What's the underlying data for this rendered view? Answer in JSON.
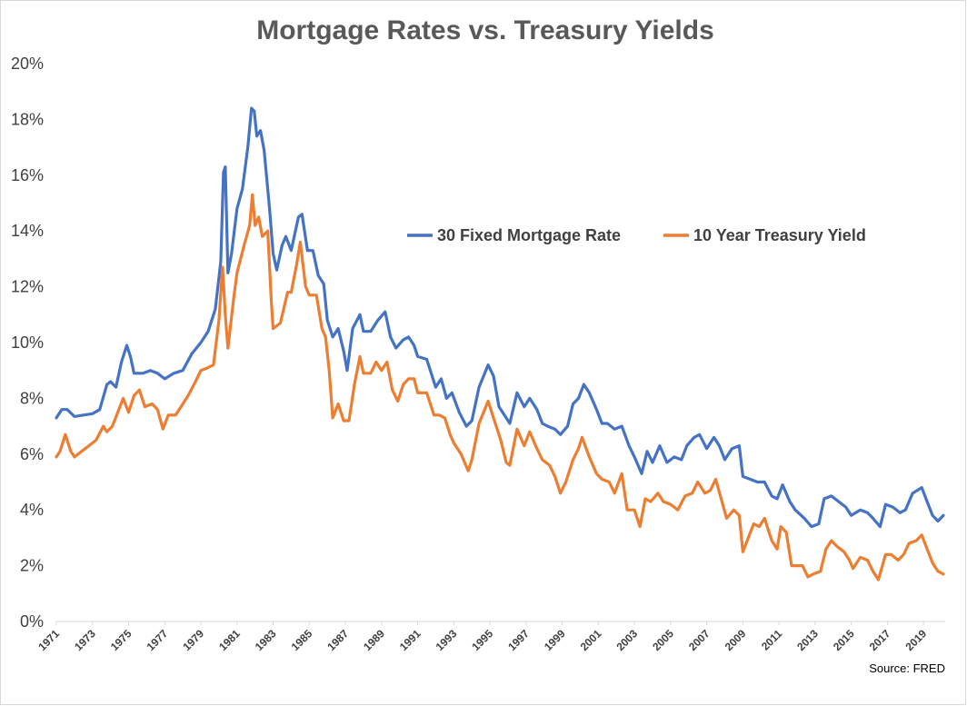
{
  "chart_data": {
    "type": "line",
    "title": "Mortgage Rates vs. Treasury Yields",
    "source": "Source: FRED",
    "xlabel": "",
    "ylabel": "",
    "xlim": [
      1971,
      2020.2
    ],
    "ylim": [
      0,
      20
    ],
    "y_ticks": [
      "0%",
      "2%",
      "4%",
      "6%",
      "8%",
      "10%",
      "12%",
      "14%",
      "16%",
      "18%",
      "20%"
    ],
    "x_ticks": [
      "1971",
      "1973",
      "1975",
      "1977",
      "1979",
      "1981",
      "1983",
      "1985",
      "1987",
      "1989",
      "1991",
      "1993",
      "1995",
      "1997",
      "1999",
      "2001",
      "2003",
      "2005",
      "2007",
      "2009",
      "2011",
      "2013",
      "2015",
      "2017",
      "2019"
    ],
    "grid": false,
    "legend_position": "upper-right",
    "series": [
      {
        "name": "30 Fixed Mortgage Rate",
        "color": "#4472C4",
        "points": [
          [
            1971.0,
            7.3
          ],
          [
            1971.3,
            7.6
          ],
          [
            1971.6,
            7.6
          ],
          [
            1972.0,
            7.35
          ],
          [
            1972.5,
            7.4
          ],
          [
            1973.0,
            7.45
          ],
          [
            1973.4,
            7.6
          ],
          [
            1973.8,
            8.5
          ],
          [
            1974.0,
            8.6
          ],
          [
            1974.3,
            8.4
          ],
          [
            1974.6,
            9.3
          ],
          [
            1974.9,
            9.9
          ],
          [
            1975.1,
            9.5
          ],
          [
            1975.3,
            8.9
          ],
          [
            1975.8,
            8.9
          ],
          [
            1976.2,
            9.0
          ],
          [
            1976.6,
            8.9
          ],
          [
            1977.0,
            8.7
          ],
          [
            1977.5,
            8.9
          ],
          [
            1978.0,
            9.0
          ],
          [
            1978.5,
            9.6
          ],
          [
            1979.0,
            10.0
          ],
          [
            1979.4,
            10.4
          ],
          [
            1979.8,
            11.2
          ],
          [
            1980.1,
            12.9
          ],
          [
            1980.25,
            16.1
          ],
          [
            1980.35,
            16.3
          ],
          [
            1980.5,
            12.5
          ],
          [
            1980.7,
            13.2
          ],
          [
            1981.0,
            14.8
          ],
          [
            1981.3,
            15.5
          ],
          [
            1981.6,
            17.0
          ],
          [
            1981.8,
            18.4
          ],
          [
            1981.95,
            18.3
          ],
          [
            1982.1,
            17.4
          ],
          [
            1982.3,
            17.6
          ],
          [
            1982.5,
            16.9
          ],
          [
            1982.8,
            14.8
          ],
          [
            1983.0,
            13.2
          ],
          [
            1983.2,
            12.6
          ],
          [
            1983.5,
            13.5
          ],
          [
            1983.7,
            13.8
          ],
          [
            1984.0,
            13.3
          ],
          [
            1984.4,
            14.5
          ],
          [
            1984.6,
            14.6
          ],
          [
            1984.9,
            13.3
          ],
          [
            1985.2,
            13.3
          ],
          [
            1985.5,
            12.4
          ],
          [
            1985.8,
            12.1
          ],
          [
            1986.0,
            10.8
          ],
          [
            1986.3,
            10.2
          ],
          [
            1986.6,
            10.5
          ],
          [
            1986.9,
            9.7
          ],
          [
            1987.1,
            9.0
          ],
          [
            1987.4,
            10.5
          ],
          [
            1987.8,
            11.0
          ],
          [
            1988.0,
            10.4
          ],
          [
            1988.4,
            10.4
          ],
          [
            1988.8,
            10.8
          ],
          [
            1989.2,
            11.1
          ],
          [
            1989.5,
            10.2
          ],
          [
            1989.8,
            9.8
          ],
          [
            1990.2,
            10.1
          ],
          [
            1990.5,
            10.2
          ],
          [
            1990.8,
            9.9
          ],
          [
            1991.0,
            9.5
          ],
          [
            1991.5,
            9.4
          ],
          [
            1992.0,
            8.4
          ],
          [
            1992.3,
            8.7
          ],
          [
            1992.6,
            8.0
          ],
          [
            1992.9,
            8.2
          ],
          [
            1993.3,
            7.5
          ],
          [
            1993.7,
            7.0
          ],
          [
            1994.0,
            7.2
          ],
          [
            1994.4,
            8.4
          ],
          [
            1994.9,
            9.2
          ],
          [
            1995.2,
            8.8
          ],
          [
            1995.5,
            7.7
          ],
          [
            1995.9,
            7.3
          ],
          [
            1996.1,
            7.1
          ],
          [
            1996.5,
            8.2
          ],
          [
            1996.9,
            7.7
          ],
          [
            1997.2,
            8.0
          ],
          [
            1997.6,
            7.6
          ],
          [
            1997.9,
            7.1
          ],
          [
            1998.2,
            7.0
          ],
          [
            1998.6,
            6.9
          ],
          [
            1998.9,
            6.7
          ],
          [
            1999.3,
            7.0
          ],
          [
            1999.6,
            7.8
          ],
          [
            1999.9,
            8.0
          ],
          [
            2000.2,
            8.5
          ],
          [
            2000.5,
            8.2
          ],
          [
            2000.9,
            7.6
          ],
          [
            2001.2,
            7.1
          ],
          [
            2001.5,
            7.1
          ],
          [
            2001.9,
            6.9
          ],
          [
            2002.3,
            7.0
          ],
          [
            2002.7,
            6.3
          ],
          [
            2003.0,
            5.9
          ],
          [
            2003.4,
            5.3
          ],
          [
            2003.7,
            6.1
          ],
          [
            2004.0,
            5.7
          ],
          [
            2004.4,
            6.3
          ],
          [
            2004.8,
            5.7
          ],
          [
            2005.2,
            5.9
          ],
          [
            2005.6,
            5.8
          ],
          [
            2005.9,
            6.3
          ],
          [
            2006.3,
            6.6
          ],
          [
            2006.6,
            6.7
          ],
          [
            2007.0,
            6.2
          ],
          [
            2007.4,
            6.6
          ],
          [
            2007.7,
            6.3
          ],
          [
            2008.0,
            5.8
          ],
          [
            2008.4,
            6.2
          ],
          [
            2008.8,
            6.3
          ],
          [
            2009.0,
            5.2
          ],
          [
            2009.4,
            5.1
          ],
          [
            2009.8,
            5.0
          ],
          [
            2010.2,
            5.0
          ],
          [
            2010.6,
            4.5
          ],
          [
            2010.9,
            4.4
          ],
          [
            2011.2,
            4.9
          ],
          [
            2011.6,
            4.3
          ],
          [
            2011.9,
            4.0
          ],
          [
            2012.4,
            3.7
          ],
          [
            2012.8,
            3.4
          ],
          [
            2013.2,
            3.5
          ],
          [
            2013.5,
            4.4
          ],
          [
            2013.9,
            4.5
          ],
          [
            2014.3,
            4.3
          ],
          [
            2014.7,
            4.1
          ],
          [
            2015.0,
            3.8
          ],
          [
            2015.5,
            4.0
          ],
          [
            2015.9,
            3.9
          ],
          [
            2016.2,
            3.7
          ],
          [
            2016.6,
            3.4
          ],
          [
            2016.9,
            4.2
          ],
          [
            2017.3,
            4.1
          ],
          [
            2017.7,
            3.9
          ],
          [
            2018.0,
            4.0
          ],
          [
            2018.4,
            4.6
          ],
          [
            2018.9,
            4.8
          ],
          [
            2019.2,
            4.3
          ],
          [
            2019.5,
            3.8
          ],
          [
            2019.8,
            3.6
          ],
          [
            2020.1,
            3.8
          ]
        ]
      },
      {
        "name": "10 Year Treasury Yield",
        "color": "#ED7D31",
        "points": [
          [
            1971.0,
            5.9
          ],
          [
            1971.2,
            6.1
          ],
          [
            1971.5,
            6.7
          ],
          [
            1971.8,
            6.1
          ],
          [
            1972.0,
            5.9
          ],
          [
            1972.4,
            6.1
          ],
          [
            1972.8,
            6.3
          ],
          [
            1973.2,
            6.5
          ],
          [
            1973.6,
            7.0
          ],
          [
            1973.8,
            6.8
          ],
          [
            1974.1,
            7.0
          ],
          [
            1974.4,
            7.5
          ],
          [
            1974.7,
            8.0
          ],
          [
            1975.0,
            7.5
          ],
          [
            1975.3,
            8.1
          ],
          [
            1975.6,
            8.3
          ],
          [
            1975.9,
            7.7
          ],
          [
            1976.3,
            7.8
          ],
          [
            1976.6,
            7.6
          ],
          [
            1976.9,
            6.9
          ],
          [
            1977.2,
            7.4
          ],
          [
            1977.6,
            7.4
          ],
          [
            1977.9,
            7.7
          ],
          [
            1978.3,
            8.1
          ],
          [
            1978.7,
            8.6
          ],
          [
            1979.0,
            9.0
          ],
          [
            1979.4,
            9.1
          ],
          [
            1979.7,
            9.2
          ],
          [
            1980.0,
            10.8
          ],
          [
            1980.2,
            12.7
          ],
          [
            1980.35,
            11.0
          ],
          [
            1980.5,
            9.8
          ],
          [
            1980.8,
            11.5
          ],
          [
            1981.0,
            12.5
          ],
          [
            1981.4,
            13.5
          ],
          [
            1981.7,
            14.2
          ],
          [
            1981.85,
            15.3
          ],
          [
            1982.0,
            14.2
          ],
          [
            1982.2,
            14.5
          ],
          [
            1982.4,
            13.8
          ],
          [
            1982.7,
            14.0
          ],
          [
            1982.9,
            11.5
          ],
          [
            1983.0,
            10.5
          ],
          [
            1983.4,
            10.7
          ],
          [
            1983.8,
            11.8
          ],
          [
            1984.0,
            11.8
          ],
          [
            1984.3,
            12.8
          ],
          [
            1984.5,
            13.6
          ],
          [
            1984.8,
            12.0
          ],
          [
            1985.0,
            11.7
          ],
          [
            1985.4,
            11.7
          ],
          [
            1985.7,
            10.5
          ],
          [
            1985.9,
            10.2
          ],
          [
            1986.1,
            9.0
          ],
          [
            1986.3,
            7.3
          ],
          [
            1986.6,
            7.8
          ],
          [
            1986.9,
            7.2
          ],
          [
            1987.2,
            7.2
          ],
          [
            1987.5,
            8.5
          ],
          [
            1987.8,
            9.5
          ],
          [
            1988.0,
            8.9
          ],
          [
            1988.4,
            8.9
          ],
          [
            1988.7,
            9.3
          ],
          [
            1989.0,
            9.0
          ],
          [
            1989.3,
            9.3
          ],
          [
            1989.6,
            8.3
          ],
          [
            1989.9,
            7.9
          ],
          [
            1990.2,
            8.5
          ],
          [
            1990.5,
            8.7
          ],
          [
            1990.8,
            8.7
          ],
          [
            1991.0,
            8.2
          ],
          [
            1991.5,
            8.2
          ],
          [
            1991.9,
            7.4
          ],
          [
            1992.2,
            7.4
          ],
          [
            1992.5,
            7.3
          ],
          [
            1992.8,
            6.7
          ],
          [
            1993.0,
            6.4
          ],
          [
            1993.4,
            6.0
          ],
          [
            1993.8,
            5.4
          ],
          [
            1994.0,
            5.8
          ],
          [
            1994.4,
            7.1
          ],
          [
            1994.9,
            7.9
          ],
          [
            1995.2,
            7.3
          ],
          [
            1995.6,
            6.5
          ],
          [
            1995.9,
            5.7
          ],
          [
            1996.1,
            5.6
          ],
          [
            1996.5,
            6.9
          ],
          [
            1996.9,
            6.3
          ],
          [
            1997.2,
            6.8
          ],
          [
            1997.6,
            6.2
          ],
          [
            1997.9,
            5.8
          ],
          [
            1998.3,
            5.6
          ],
          [
            1998.6,
            5.2
          ],
          [
            1998.9,
            4.6
          ],
          [
            1999.2,
            5.0
          ],
          [
            1999.6,
            5.8
          ],
          [
            1999.9,
            6.2
          ],
          [
            2000.1,
            6.6
          ],
          [
            2000.5,
            5.9
          ],
          [
            2000.9,
            5.3
          ],
          [
            2001.2,
            5.1
          ],
          [
            2001.6,
            5.0
          ],
          [
            2001.9,
            4.6
          ],
          [
            2002.3,
            5.3
          ],
          [
            2002.6,
            4.0
          ],
          [
            2003.0,
            4.0
          ],
          [
            2003.3,
            3.4
          ],
          [
            2003.6,
            4.4
          ],
          [
            2003.9,
            4.3
          ],
          [
            2004.3,
            4.6
          ],
          [
            2004.6,
            4.3
          ],
          [
            2005.0,
            4.2
          ],
          [
            2005.4,
            4.0
          ],
          [
            2005.8,
            4.5
          ],
          [
            2006.2,
            4.6
          ],
          [
            2006.5,
            5.0
          ],
          [
            2006.9,
            4.6
          ],
          [
            2007.2,
            4.7
          ],
          [
            2007.5,
            5.1
          ],
          [
            2007.8,
            4.4
          ],
          [
            2008.1,
            3.7
          ],
          [
            2008.5,
            4.0
          ],
          [
            2008.8,
            3.8
          ],
          [
            2009.0,
            2.5
          ],
          [
            2009.3,
            3.0
          ],
          [
            2009.6,
            3.5
          ],
          [
            2009.9,
            3.4
          ],
          [
            2010.2,
            3.7
          ],
          [
            2010.6,
            2.9
          ],
          [
            2010.9,
            2.6
          ],
          [
            2011.1,
            3.4
          ],
          [
            2011.4,
            3.2
          ],
          [
            2011.7,
            2.0
          ],
          [
            2011.9,
            2.0
          ],
          [
            2012.3,
            2.0
          ],
          [
            2012.6,
            1.6
          ],
          [
            2012.9,
            1.7
          ],
          [
            2013.3,
            1.8
          ],
          [
            2013.6,
            2.6
          ],
          [
            2013.9,
            2.9
          ],
          [
            2014.2,
            2.7
          ],
          [
            2014.6,
            2.5
          ],
          [
            2014.9,
            2.2
          ],
          [
            2015.1,
            1.9
          ],
          [
            2015.5,
            2.3
          ],
          [
            2015.9,
            2.2
          ],
          [
            2016.2,
            1.8
          ],
          [
            2016.5,
            1.5
          ],
          [
            2016.9,
            2.4
          ],
          [
            2017.2,
            2.4
          ],
          [
            2017.6,
            2.2
          ],
          [
            2017.9,
            2.4
          ],
          [
            2018.2,
            2.8
          ],
          [
            2018.6,
            2.9
          ],
          [
            2018.9,
            3.1
          ],
          [
            2019.2,
            2.6
          ],
          [
            2019.5,
            2.1
          ],
          [
            2019.8,
            1.8
          ],
          [
            2020.1,
            1.7
          ]
        ]
      }
    ]
  }
}
